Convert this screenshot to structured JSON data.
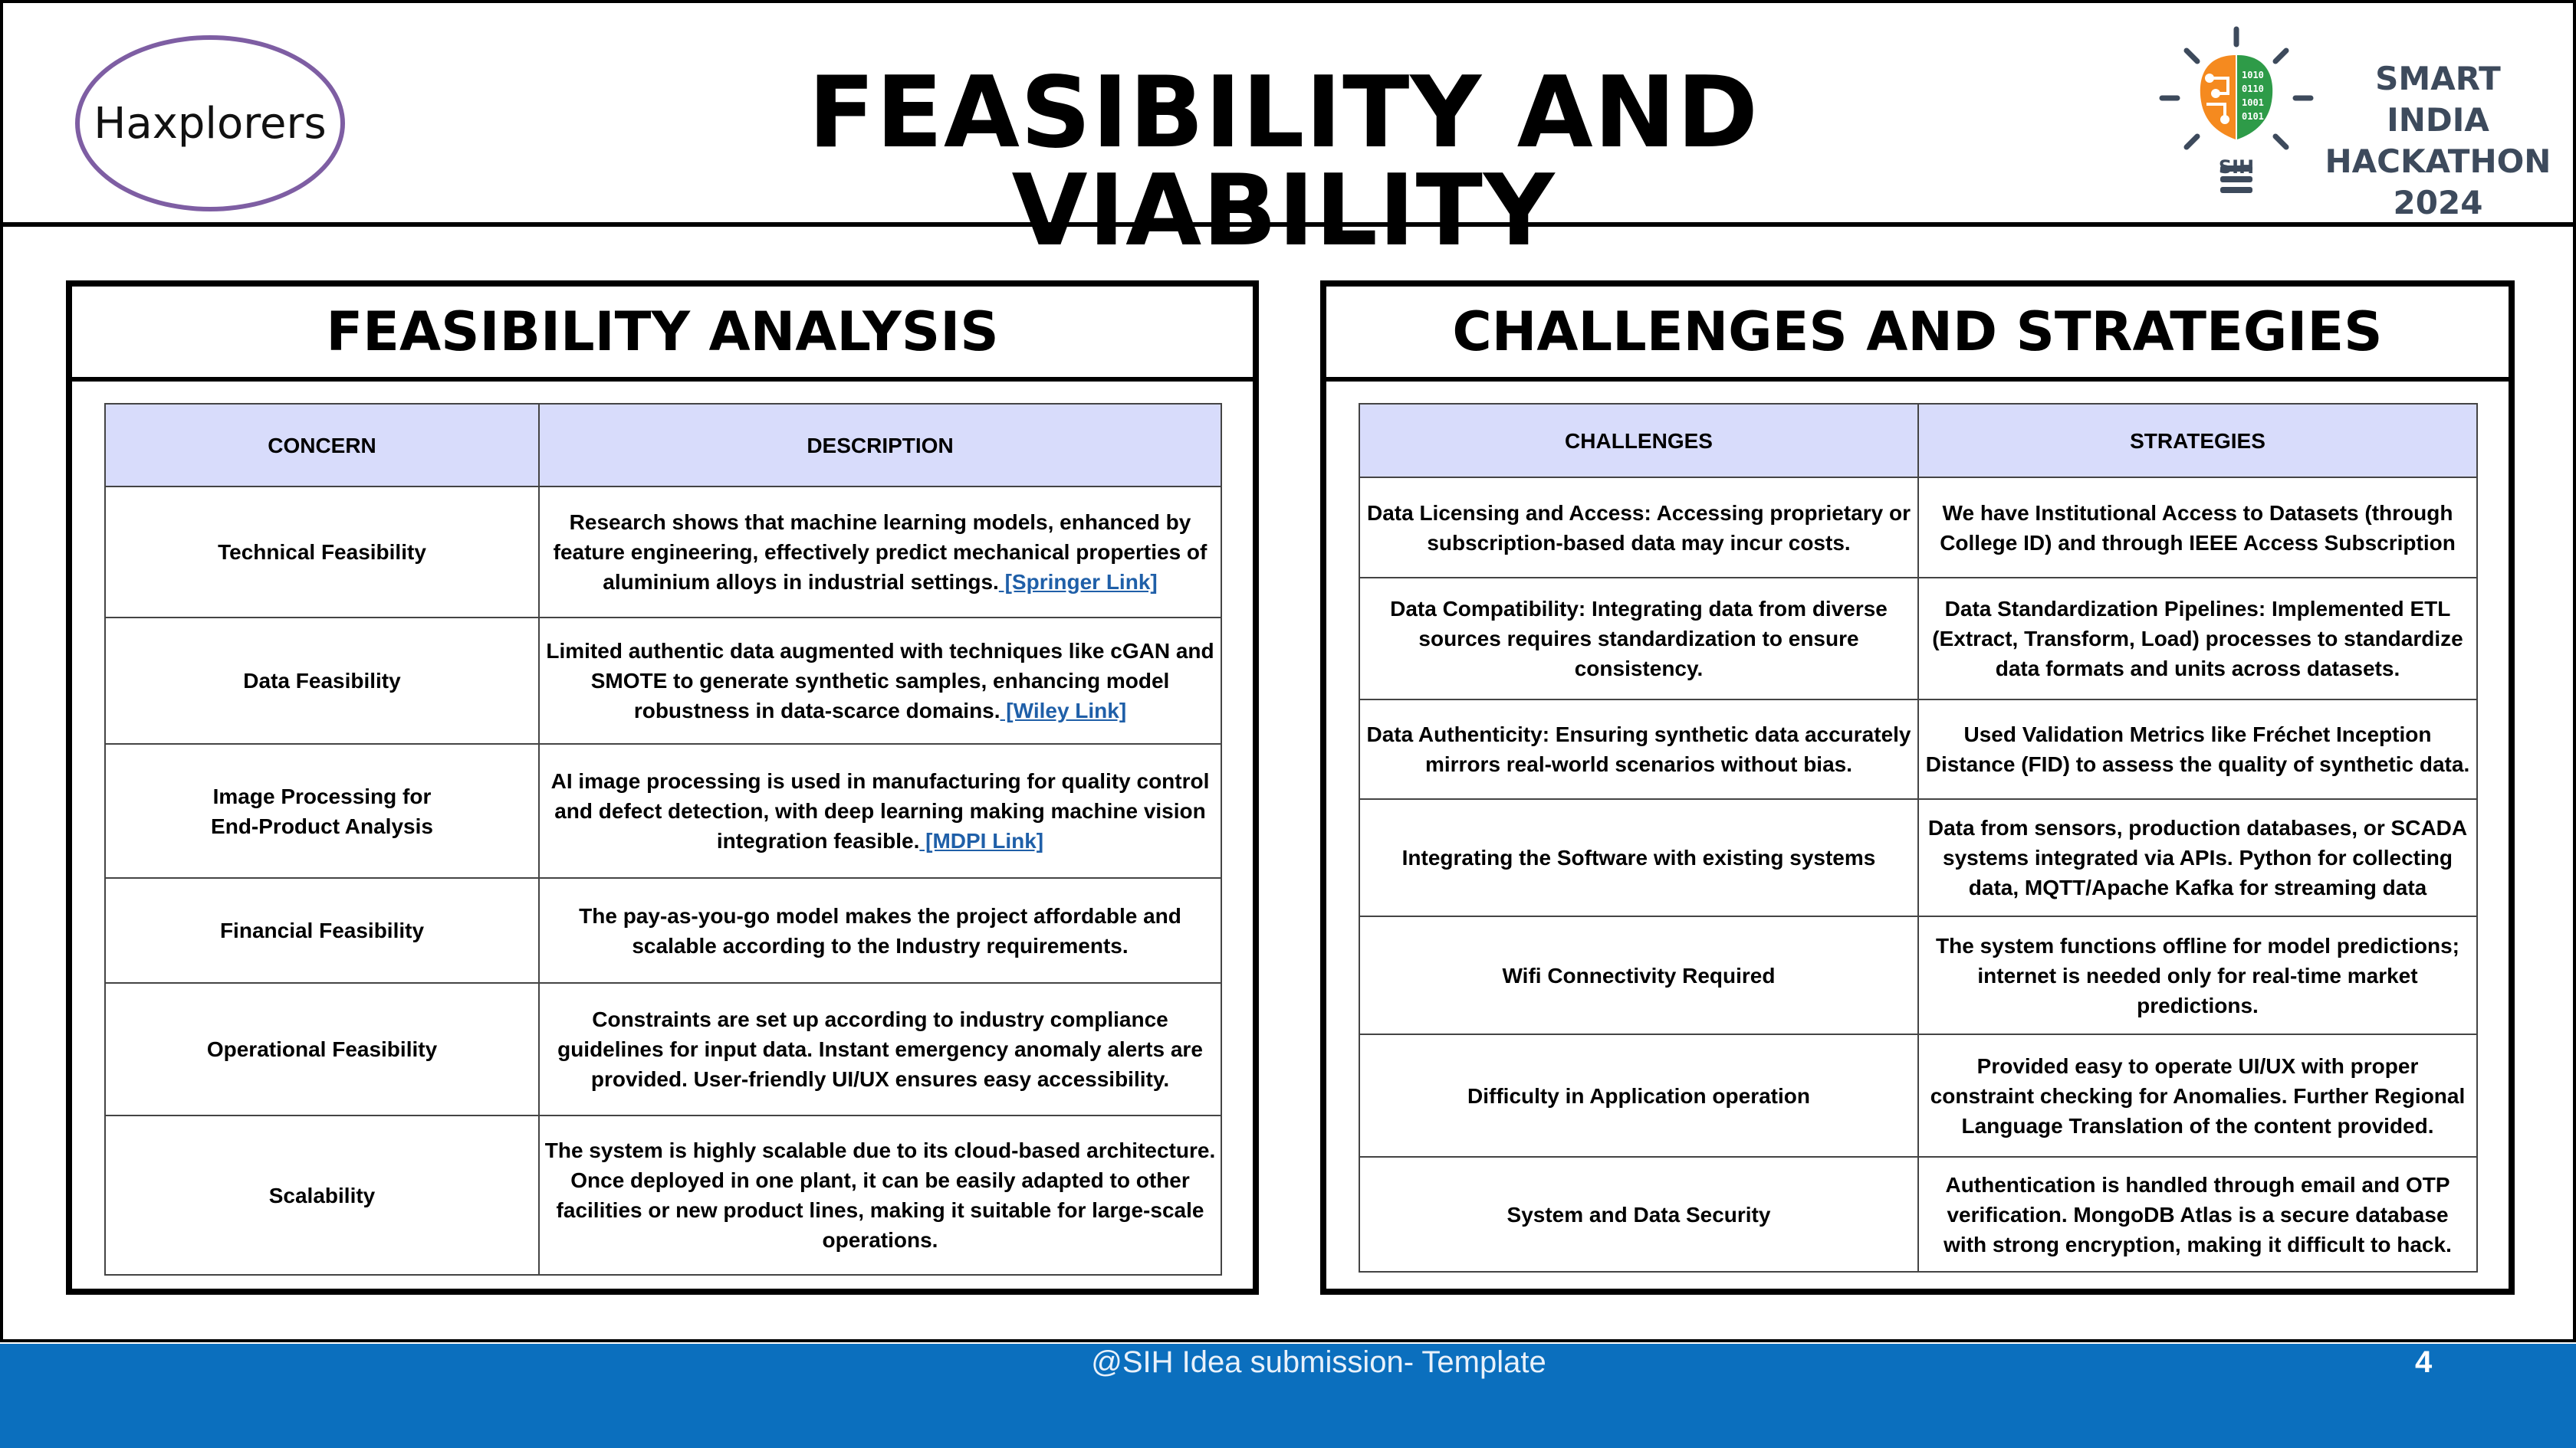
{
  "header": {
    "team_name": "Haxplorers",
    "title": "FEASIBILITY AND VIABILITY",
    "logo": {
      "icon": "sih-bulb-brain-icon",
      "badge_text": "SIH",
      "line1": "SMART INDIA",
      "line2": "HACKATHON",
      "line3": "2024",
      "colors": {
        "orange": "#f58a1f",
        "green": "#2e9b48",
        "gray": "#3d4a5c"
      }
    }
  },
  "feasibility": {
    "title": "FEASIBILITY ANALYSIS",
    "columns": [
      "CONCERN",
      "DESCRIPTION"
    ],
    "rows": [
      {
        "concern": "Technical Feasibility",
        "description": "Research shows that machine learning models, enhanced by feature engineering, effectively predict mechanical properties of aluminium alloys in industrial settings.",
        "link": " [Springer Link]"
      },
      {
        "concern": "Data Feasibility",
        "description": "Limited authentic data augmented with techniques like cGAN and SMOTE to generate synthetic samples, enhancing model robustness in data-scarce domains.",
        "link": " [Wiley Link]"
      },
      {
        "concern": "Image Processing for End-Product Analysis",
        "description": "AI image processing is used in manufacturing for quality control and defect detection, with deep learning making machine vision integration feasible.",
        "link": " [MDPI Link]"
      },
      {
        "concern": "Financial Feasibility",
        "description": "The pay-as-you-go model makes the project affordable and scalable according to the Industry requirements.",
        "link": ""
      },
      {
        "concern": "Operational Feasibility",
        "description": "Constraints are set up according to industry compliance guidelines for input data. Instant emergency anomaly alerts are provided. User-friendly UI/UX ensures easy accessibility.",
        "link": ""
      },
      {
        "concern": "Scalability",
        "description": "The system is highly scalable due to its cloud-based architecture. Once deployed in one plant, it can be easily adapted to other facilities or new product lines, making it suitable for large-scale operations.",
        "link": ""
      }
    ]
  },
  "challenges": {
    "title": "CHALLENGES AND STRATEGIES",
    "columns": [
      "CHALLENGES",
      "STRATEGIES"
    ],
    "rows": [
      {
        "challenge": "Data Licensing and Access: Accessing proprietary or subscription-based data may incur costs.",
        "strategy": "We have Institutional Access to Datasets (through College ID) and through IEEE Access Subscription"
      },
      {
        "challenge": "Data Compatibility: Integrating data from diverse sources requires standardization to ensure consistency.",
        "strategy": "Data Standardization Pipelines: Implemented ETL (Extract, Transform, Load) processes to standardize data formats and units across datasets."
      },
      {
        "challenge": "Data Authenticity: Ensuring synthetic data accurately mirrors real-world scenarios without bias.",
        "strategy": "Used Validation Metrics like Fréchet Inception Distance (FID) to assess the quality of synthetic data."
      },
      {
        "challenge": "Integrating the Software with existing systems",
        "strategy": "Data from sensors, production databases, or SCADA systems integrated via APIs. Python for collecting data, MQTT/Apache Kafka for streaming data"
      },
      {
        "challenge": "Wifi Connectivity Required",
        "strategy": "The system functions offline for model predictions; internet is needed only for real-time market predictions."
      },
      {
        "challenge": "Difficulty in Application operation",
        "strategy": "Provided easy to operate UI/UX with proper constraint checking for Anomalies. Further Regional Language Translation of the content provided."
      },
      {
        "challenge": "System and Data Security",
        "strategy": "Authentication is handled through email and OTP verification. MongoDB Atlas is a secure database with strong encryption, making it difficult to hack."
      }
    ]
  },
  "footer": {
    "text": "@SIH Idea submission- Template",
    "page_number": "4",
    "color": "#0b6fbe"
  }
}
